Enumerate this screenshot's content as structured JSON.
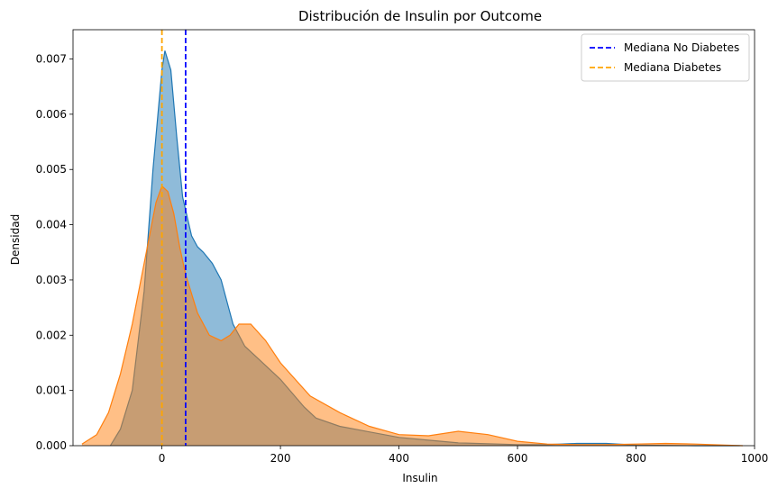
{
  "chart_data": {
    "type": "area",
    "title": "Distribución de Insulin por Outcome",
    "xlabel": "Insulin",
    "ylabel": "Densidad",
    "xlim": [
      -150,
      1000
    ],
    "ylim": [
      0,
      0.00753
    ],
    "xticks": [
      "0",
      "200",
      "400",
      "600",
      "800",
      "1000"
    ],
    "xtick_values": [
      0,
      200,
      400,
      600,
      800,
      1000
    ],
    "yticks": [
      "0.000",
      "0.001",
      "0.002",
      "0.003",
      "0.004",
      "0.005",
      "0.006",
      "0.007"
    ],
    "ytick_values": [
      0,
      0.001,
      0.002,
      0.003,
      0.004,
      0.005,
      0.006,
      0.007
    ],
    "grid": false,
    "legend_position": "top-right",
    "series": [
      {
        "color": "#1f77b4",
        "fill_opacity": 0.5,
        "x": [
          -87,
          -70,
          -50,
          -30,
          -15,
          0,
          5,
          15,
          25,
          35,
          50,
          60,
          70,
          85,
          100,
          110,
          120,
          140,
          160,
          180,
          200,
          240,
          260,
          300,
          350,
          400,
          450,
          500,
          600,
          650,
          700,
          750,
          800,
          900,
          975
        ],
        "y": [
          0.0,
          0.0003,
          0.001,
          0.0028,
          0.005,
          0.0068,
          0.00715,
          0.0068,
          0.0056,
          0.0045,
          0.0038,
          0.0036,
          0.0035,
          0.0033,
          0.003,
          0.0026,
          0.0022,
          0.0018,
          0.0016,
          0.0014,
          0.0012,
          0.0007,
          0.0005,
          0.00035,
          0.00025,
          0.00015,
          0.0001,
          5e-05,
          2e-05,
          2e-05,
          4e-05,
          4e-05,
          1e-05,
          0.0,
          0.0
        ]
      },
      {
        "color": "#ff7f0e",
        "fill_opacity": 0.5,
        "x": [
          -135,
          -110,
          -90,
          -70,
          -50,
          -30,
          -10,
          0,
          10,
          20,
          30,
          40,
          60,
          80,
          100,
          115,
          130,
          150,
          175,
          200,
          250,
          300,
          350,
          400,
          450,
          500,
          550,
          600,
          650,
          700,
          750,
          800,
          850,
          900,
          950,
          980
        ],
        "y": [
          3e-05,
          0.0002,
          0.0006,
          0.0013,
          0.0022,
          0.0033,
          0.0044,
          0.0047,
          0.0046,
          0.0042,
          0.0036,
          0.0031,
          0.0024,
          0.002,
          0.0019,
          0.002,
          0.0022,
          0.0022,
          0.0019,
          0.0015,
          0.0009,
          0.0006,
          0.00035,
          0.0002,
          0.00018,
          0.00026,
          0.0002,
          8e-05,
          3e-05,
          2e-05,
          2e-05,
          3e-05,
          4e-05,
          3e-05,
          1e-05,
          0.0
        ]
      }
    ],
    "reference_lines": [
      {
        "label": "Mediana No Diabetes",
        "x": 40,
        "color": "#0000ff",
        "style": "dashed"
      },
      {
        "label": "Mediana Diabetes",
        "x": 0,
        "color": "#ffa500",
        "style": "dashed"
      }
    ]
  }
}
